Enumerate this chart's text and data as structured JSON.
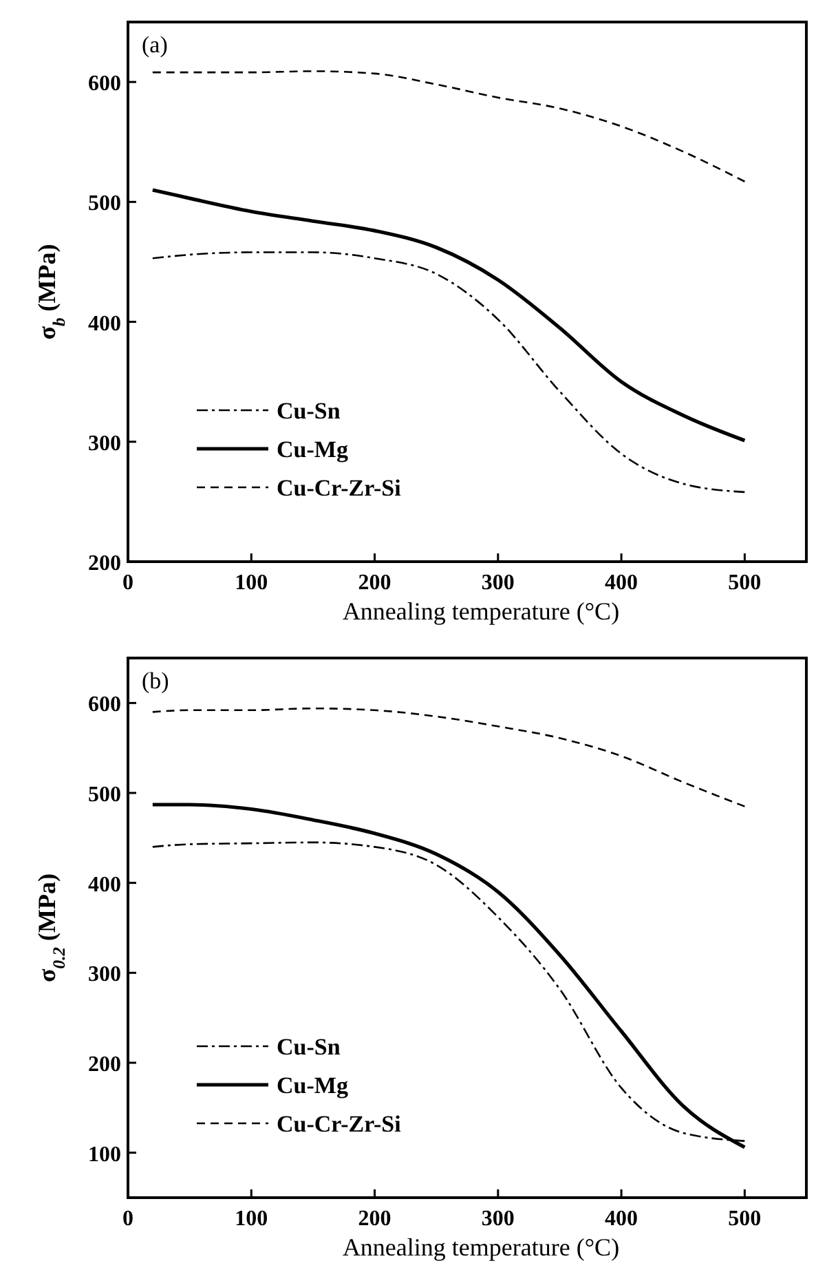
{
  "chart_data": [
    {
      "type": "line",
      "title": "(a)",
      "xlabel": "Annealing temperature (°C)",
      "ylabel": "σ$_{b}$ (MPa)",
      "x": [
        20,
        50,
        100,
        150,
        200,
        250,
        300,
        350,
        400,
        450,
        500
      ],
      "series": [
        {
          "name": "Cu-Sn",
          "color": "#000000",
          "line_style": "dashdot",
          "values": [
            453,
            456,
            458,
            458,
            453,
            440,
            402,
            342,
            290,
            265,
            258
          ]
        },
        {
          "name": "Cu-Mg",
          "color": "#000000",
          "line_style": "solid",
          "values": [
            510,
            503,
            492,
            484,
            476,
            462,
            435,
            395,
            350,
            322,
            301
          ]
        },
        {
          "name": "Cu-Cr-Zr-Si",
          "color": "#000000",
          "line_style": "dashed",
          "values": [
            608,
            608,
            608,
            609,
            607,
            598,
            587,
            578,
            563,
            542,
            517
          ]
        }
      ],
      "xlim": [
        0,
        550
      ],
      "xticks": [
        0,
        100,
        200,
        300,
        400,
        500
      ],
      "ylim": [
        200,
        650
      ],
      "yticks": [
        200,
        300,
        400,
        500,
        600
      ],
      "grid": false,
      "legend": "bottom left",
      "marker": "none"
    },
    {
      "type": "line",
      "title": "(b)",
      "xlabel": "Annealing temperature (°C)",
      "ylabel": "σ$_{0.2}$ (MPa)",
      "x": [
        20,
        50,
        100,
        150,
        200,
        250,
        300,
        350,
        400,
        450,
        500
      ],
      "series": [
        {
          "name": "Cu-Sn",
          "color": "#000000",
          "line_style": "dashdot",
          "values": [
            440,
            443,
            444,
            445,
            440,
            420,
            362,
            282,
            172,
            122,
            113
          ]
        },
        {
          "name": "Cu-Mg",
          "color": "#000000",
          "line_style": "solid",
          "values": [
            487,
            487,
            482,
            470,
            455,
            432,
            390,
            320,
            235,
            152,
            106
          ]
        },
        {
          "name": "Cu-Cr-Zr-Si",
          "color": "#000000",
          "line_style": "dashed",
          "values": [
            590,
            592,
            592,
            594,
            592,
            585,
            574,
            561,
            541,
            512,
            485
          ]
        }
      ],
      "xlim": [
        0,
        550
      ],
      "xticks": [
        0,
        100,
        200,
        300,
        400,
        500
      ],
      "ylim": [
        50,
        650
      ],
      "yticks": [
        100,
        200,
        300,
        400,
        500,
        600
      ],
      "grid": false,
      "legend": "bottom left",
      "marker": "none"
    }
  ]
}
